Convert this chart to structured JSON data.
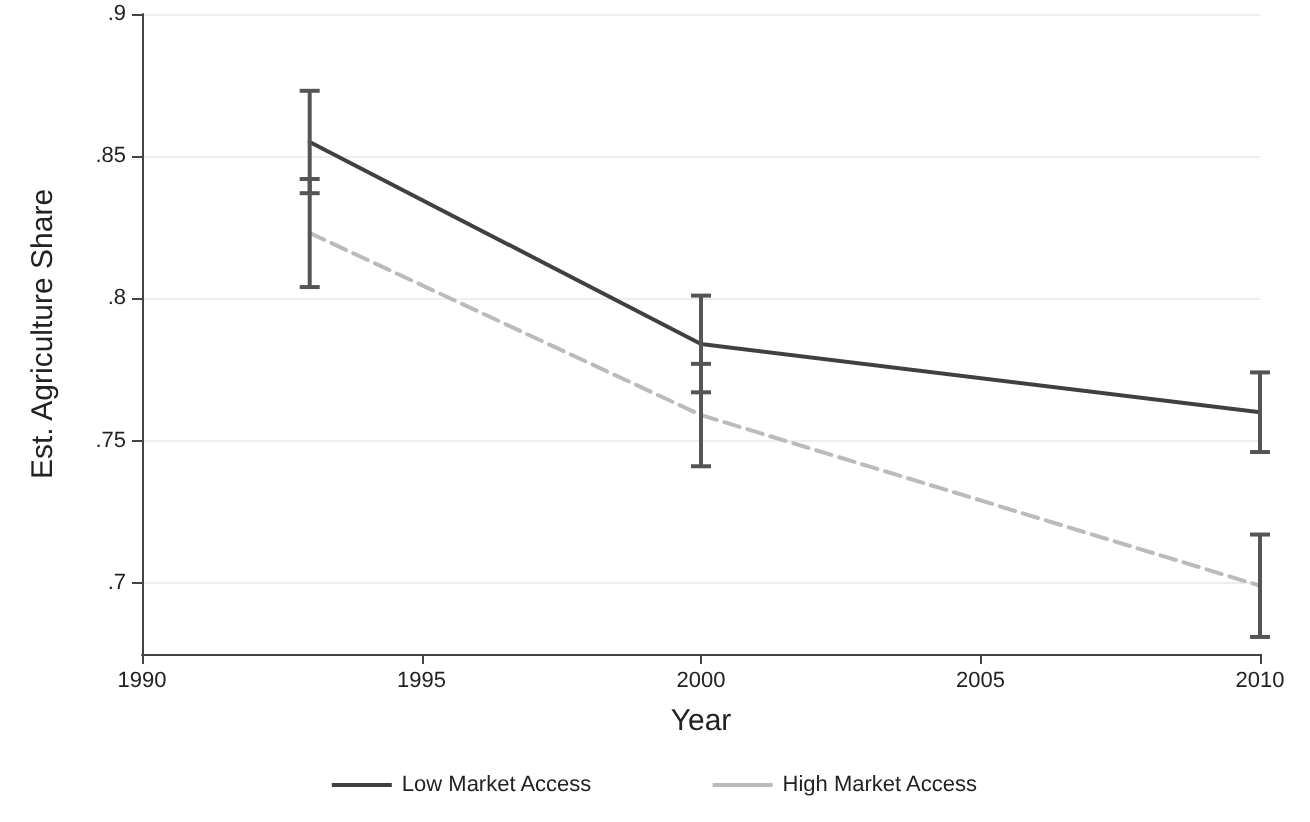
{
  "chart_data": {
    "type": "line",
    "xlabel": "Year",
    "ylabel": "Est. Agriculture Share",
    "x": [
      1993,
      2000,
      2010
    ],
    "series": [
      {
        "name": "Low Market Access",
        "color": "#404040",
        "line_style": "solid",
        "values": [
          0.855,
          0.784,
          0.76
        ],
        "errors": [
          [
            0.837,
            0.873
          ],
          [
            0.767,
            0.801
          ],
          [
            0.746,
            0.774
          ]
        ]
      },
      {
        "name": "High Market Access",
        "color": "#bbbbbb",
        "line_style": "dashed",
        "values": [
          0.823,
          0.759,
          0.699
        ],
        "errors": [
          [
            0.804,
            0.842
          ],
          [
            0.741,
            0.777
          ],
          [
            0.681,
            0.717
          ]
        ]
      }
    ],
    "xlim": [
      1990,
      2010
    ],
    "xticks": [
      1990,
      1995,
      2000,
      2005,
      2010
    ],
    "ylim": [
      0.675,
      0.9
    ],
    "yticks": [
      {
        "value": 0.7,
        "label": ".7"
      },
      {
        "value": 0.75,
        "label": ".75"
      },
      {
        "value": 0.8,
        "label": ".8"
      },
      {
        "value": 0.85,
        "label": ".85"
      },
      {
        "value": 0.9,
        "label": ".9"
      }
    ],
    "grid": "y",
    "legend": "bottom",
    "marker": "none"
  }
}
